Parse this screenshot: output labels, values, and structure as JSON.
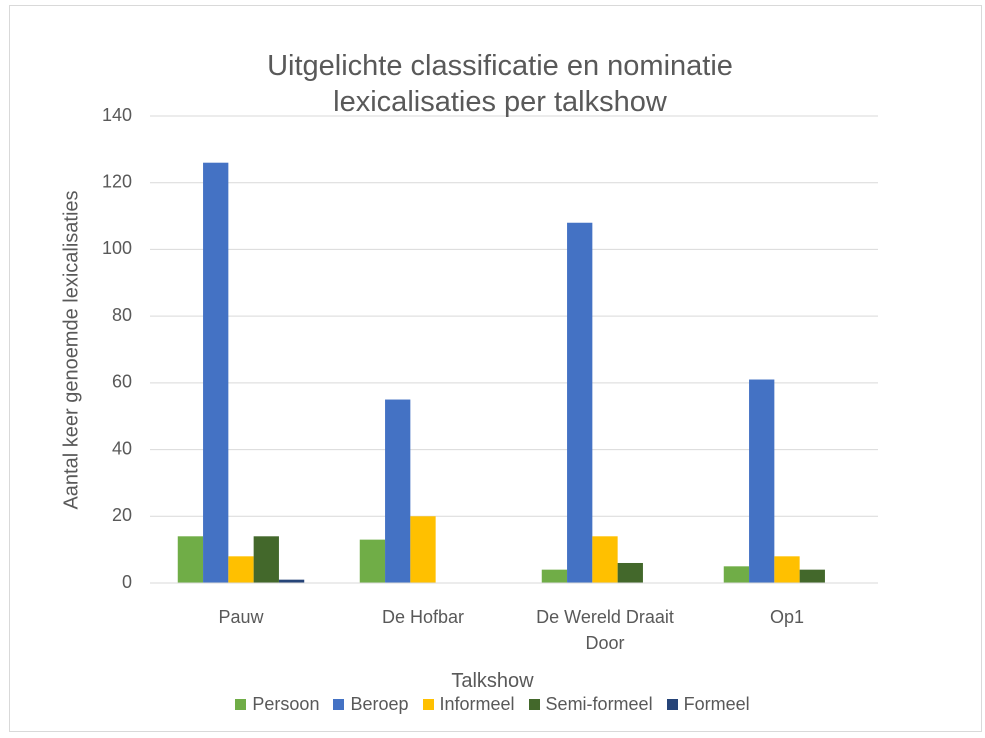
{
  "chart_data": {
    "type": "bar",
    "title": "Uitgelichte classificatie en nominatie lexicalisaties per talkshow",
    "x_label": "Talkshow",
    "y_label": "Aantal keer genoemde lexicalisaties",
    "categories": [
      "Pauw",
      "De Hofbar",
      "De Wereld Draait Door",
      "Op1"
    ],
    "series": [
      {
        "name": "Persoon",
        "color": "#70ad47",
        "values": [
          14,
          13,
          4,
          5
        ]
      },
      {
        "name": "Beroep",
        "color": "#4472c4",
        "values": [
          126,
          55,
          108,
          61
        ]
      },
      {
        "name": "Informeel",
        "color": "#ffc000",
        "values": [
          8,
          20,
          14,
          8
        ]
      },
      {
        "name": "Semi-formeel",
        "color": "#43682b",
        "values": [
          14,
          0,
          6,
          4
        ]
      },
      {
        "name": "Formeel",
        "color": "#264478",
        "values": [
          1,
          0,
          0,
          0
        ]
      }
    ],
    "ylim": [
      0,
      140
    ],
    "yticks": [
      0,
      20,
      40,
      60,
      80,
      100,
      120,
      140
    ],
    "grid": true,
    "legend": "bottom"
  }
}
